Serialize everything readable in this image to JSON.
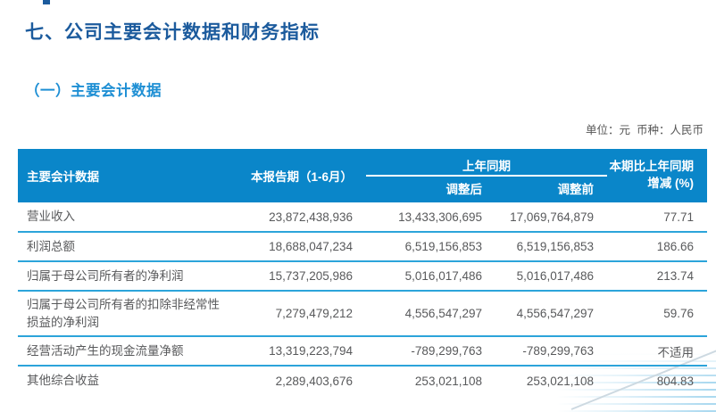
{
  "page": {
    "section_title": "七、公司主要会计数据和财务指标",
    "subsection_title": "（一）主要会计数据",
    "unit_note": "单位：元  币种：人民币"
  },
  "table": {
    "header": {
      "main": "主要会计数据",
      "current_period": "本报告期（1-6月）",
      "prior_period_group": "上年同期",
      "adjusted": "调整后",
      "before_adjust": "调整前",
      "change_line1": "本期比上年同期",
      "change_line2": "增减 (%)"
    },
    "rows": [
      {
        "label": "营业收入",
        "current": "23,872,438,936",
        "adjusted": "13,433,306,695",
        "before": "17,069,764,879",
        "change": "77.71"
      },
      {
        "label": "利润总额",
        "current": "18,688,047,234",
        "adjusted": "6,519,156,853",
        "before": "6,519,156,853",
        "change": "186.66"
      },
      {
        "label": "归属于母公司所有者的净利润",
        "current": "15,737,205,986",
        "adjusted": "5,016,017,486",
        "before": "5,016,017,486",
        "change": "213.74"
      },
      {
        "label": "归属于母公司所有者的扣除非经常性损益的净利润",
        "current": "7,279,479,212",
        "adjusted": "4,556,547,297",
        "before": "4,556,547,297",
        "change": "59.76"
      },
      {
        "label": "经营活动产生的现金流量净额",
        "current": "13,319,223,794",
        "adjusted": "-789,299,763",
        "before": "-789,299,763",
        "change": "不适用"
      },
      {
        "label": "其他综合收益",
        "current": "2,289,403,676",
        "adjusted": "253,021,108",
        "before": "253,021,108",
        "change": "804.83"
      }
    ]
  },
  "colors": {
    "title_navy": "#1c5b9d",
    "subtitle_blue": "#1e8fd4",
    "header_bg": "#0a86c9",
    "header_text": "#ffffff",
    "row_divider": "#2ca4da",
    "cell_text": "#58595b",
    "deco_line": "#cdd9e1"
  }
}
